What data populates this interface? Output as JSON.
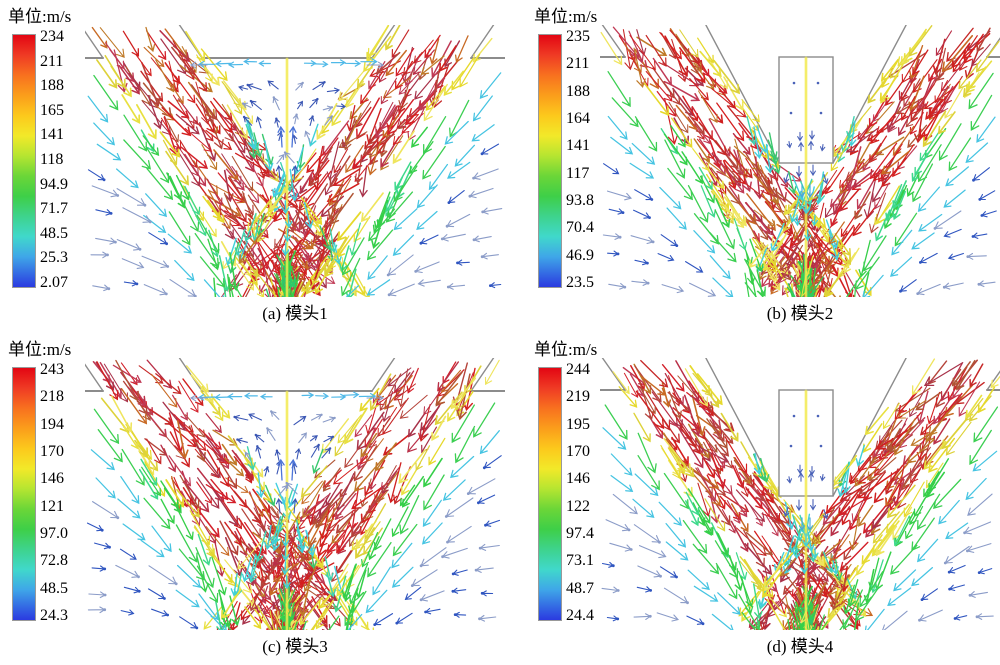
{
  "figure": {
    "unit_label": "单位:m/s",
    "panels": [
      {
        "id": "a",
        "caption": "(a) 模头1",
        "geometry": "cavity",
        "legend_values": [
          "234",
          "211",
          "188",
          "165",
          "141",
          "118",
          "94.9",
          "71.7",
          "48.5",
          "25.3",
          "2.07"
        ]
      },
      {
        "id": "b",
        "caption": "(b) 模头2",
        "geometry": "insert",
        "legend_values": [
          "235",
          "211",
          "188",
          "164",
          "141",
          "117",
          "93.8",
          "70.4",
          "46.9",
          "23.5"
        ]
      },
      {
        "id": "c",
        "caption": "(c) 模头3",
        "geometry": "cavity",
        "legend_values": [
          "243",
          "218",
          "194",
          "170",
          "146",
          "121",
          "97.0",
          "72.8",
          "48.5",
          "24.3"
        ]
      },
      {
        "id": "d",
        "caption": "(d) 模头4",
        "geometry": "insert",
        "legend_values": [
          "244",
          "219",
          "195",
          "170",
          "146",
          "122",
          "97.4",
          "73.1",
          "48.7",
          "24.4"
        ]
      }
    ],
    "colors": {
      "background": "#ffffff",
      "geometry_line": "#8c8c8c",
      "centerline_yellow": "#f2ea4e",
      "jet_core_red": "#d41f1f",
      "jet_edge_yellow": "#e6d92c",
      "entrain_cyan": "#46c4e2",
      "entrain_green": "#3ccf52",
      "slow_flow_blue": "#2f55c0",
      "slow_flow_slate": "#8b9cc8",
      "colorbar_gradient": [
        [
          "0",
          "#e30613"
        ],
        [
          "0.08",
          "#ef3b24"
        ],
        [
          "0.16",
          "#f8711f"
        ],
        [
          "0.24",
          "#fb9e1b"
        ],
        [
          "0.32",
          "#fcc91c"
        ],
        [
          "0.40",
          "#f2e929"
        ],
        [
          "0.48",
          "#b5e531"
        ],
        [
          "0.56",
          "#6bd638"
        ],
        [
          "0.64",
          "#3ecf48"
        ],
        [
          "0.72",
          "#3ed38d"
        ],
        [
          "0.80",
          "#40d8cb"
        ],
        [
          "0.88",
          "#3fa6e8"
        ],
        [
          "1",
          "#2b3ae0"
        ]
      ]
    }
  },
  "chart_data": [
    {
      "type": "vector-field",
      "title": "(a) 模头1",
      "legend_title": "单位:m/s",
      "unit": "m/s",
      "colormap": "rainbow",
      "vmax": 234,
      "vmin": 2.07,
      "velocity_scale_ticks": [
        234,
        211,
        188,
        165,
        141,
        118,
        94.9,
        71.7,
        48.5,
        25.3,
        2.07
      ],
      "geometry": "converging slot die with open center cavity",
      "flow_pattern": "two high-speed jets converge into a V; slow recirculating vortex pair in the cavity between them; slow entrained ambient flow curves down along the outer jet edges"
    },
    {
      "type": "vector-field",
      "title": "(b) 模头2",
      "legend_title": "单位:m/s",
      "unit": "m/s",
      "colormap": "rainbow",
      "vmax": 235,
      "vmin": 23.5,
      "velocity_scale_ticks": [
        235,
        211,
        188,
        164,
        141,
        117,
        93.8,
        70.4,
        46.9,
        23.5
      ],
      "geometry": "converging slot die with rectangular center insert",
      "flow_pattern": "two high-speed jets converge below a rectangular insert; weak wake flow under the insert; entrained ambient flow outside the jets"
    },
    {
      "type": "vector-field",
      "title": "(c) 模头3",
      "legend_title": "单位:m/s",
      "unit": "m/s",
      "colormap": "rainbow",
      "vmax": 243,
      "vmin": 24.3,
      "velocity_scale_ticks": [
        243,
        218,
        194,
        170,
        146,
        121,
        97.0,
        72.8,
        48.5,
        24.3
      ],
      "geometry": "converging slot die with open center cavity",
      "flow_pattern": "two high-speed jets converge into a V; slow recirculating vortex pair in the cavity between them; slow entrained ambient flow curves down along the outer jet edges"
    },
    {
      "type": "vector-field",
      "title": "(d) 模头4",
      "legend_title": "单位:m/s",
      "unit": "m/s",
      "colormap": "rainbow",
      "vmax": 244,
      "vmin": 24.4,
      "velocity_scale_ticks": [
        244,
        219,
        195,
        170,
        146,
        122,
        97.4,
        73.1,
        48.7,
        24.4
      ],
      "geometry": "converging slot die with rectangular center insert",
      "flow_pattern": "two high-speed jets converge below a rectangular insert; weak wake flow under the insert; entrained ambient flow outside the jets"
    }
  ]
}
